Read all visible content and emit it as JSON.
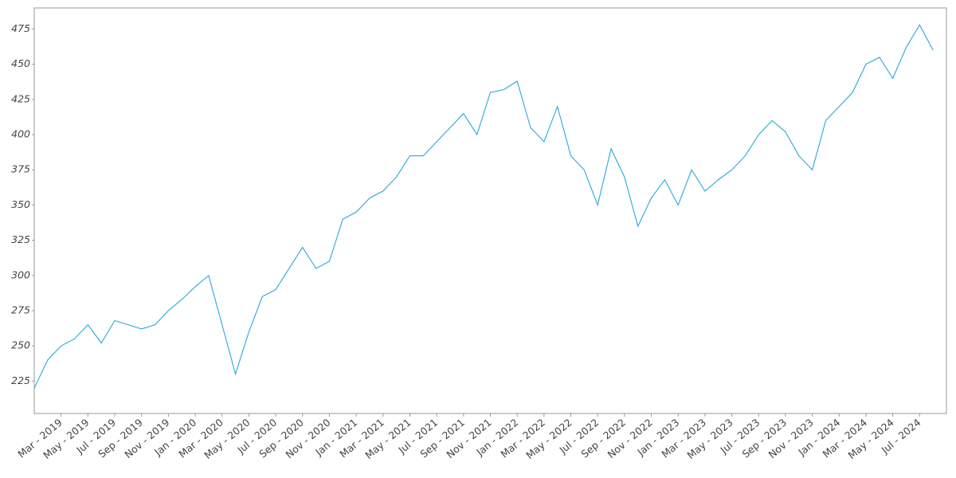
{
  "chart_data": {
    "type": "line",
    "x": [
      "2019-01",
      "2019-02",
      "2019-03",
      "2019-04",
      "2019-05",
      "2019-06",
      "2019-07",
      "2019-08",
      "2019-09",
      "2019-10",
      "2019-11",
      "2019-12",
      "2020-01",
      "2020-02",
      "2020-03",
      "2020-04",
      "2020-05",
      "2020-06",
      "2020-07",
      "2020-08",
      "2020-09",
      "2020-10",
      "2020-11",
      "2020-12",
      "2021-01",
      "2021-02",
      "2021-03",
      "2021-04",
      "2021-05",
      "2021-06",
      "2021-07",
      "2021-08",
      "2021-09",
      "2021-10",
      "2021-11",
      "2021-12",
      "2022-01",
      "2022-02",
      "2022-03",
      "2022-04",
      "2022-05",
      "2022-06",
      "2022-07",
      "2022-08",
      "2022-09",
      "2022-10",
      "2022-11",
      "2022-12",
      "2023-01",
      "2023-02",
      "2023-03",
      "2023-04",
      "2023-05",
      "2023-06",
      "2023-07",
      "2023-08",
      "2023-09",
      "2023-10",
      "2023-11",
      "2023-12",
      "2024-01",
      "2024-02",
      "2024-03",
      "2024-04",
      "2024-05",
      "2024-06",
      "2024-07",
      "2024-08"
    ],
    "series": [
      {
        "color": "#29a8d8",
        "values": [
          220,
          240,
          250,
          255,
          265,
          252,
          268,
          265,
          262,
          265,
          275,
          283,
          292,
          300,
          265,
          230,
          260,
          285,
          290,
          305,
          320,
          305,
          310,
          340,
          345,
          355,
          360,
          370,
          385,
          385,
          395,
          405,
          415,
          400,
          430,
          432,
          438,
          405,
          395,
          420,
          385,
          375,
          350,
          390,
          370,
          335,
          355,
          368,
          350,
          375,
          360,
          368,
          375,
          385,
          400,
          410,
          402,
          385,
          375,
          410,
          420,
          430,
          450,
          455,
          440,
          462,
          478,
          460
        ]
      }
    ],
    "xlim": [
      "2019-01",
      "2024-09"
    ],
    "ylim": [
      202,
      490
    ],
    "yticks": [
      225,
      250,
      275,
      300,
      325,
      350,
      375,
      400,
      425,
      450,
      475
    ],
    "xticks": [
      {
        "value": "2019-03",
        "label": "Mar - 2019"
      },
      {
        "value": "2019-05",
        "label": "May - 2019"
      },
      {
        "value": "2019-07",
        "label": "Jul - 2019"
      },
      {
        "value": "2019-09",
        "label": "Sep - 2019"
      },
      {
        "value": "2019-11",
        "label": "Nov - 2019"
      },
      {
        "value": "2020-01",
        "label": "Jan - 2020"
      },
      {
        "value": "2020-03",
        "label": "Mar - 2020"
      },
      {
        "value": "2020-05",
        "label": "May - 2020"
      },
      {
        "value": "2020-07",
        "label": "Jul - 2020"
      },
      {
        "value": "2020-09",
        "label": "Sep - 2020"
      },
      {
        "value": "2020-11",
        "label": "Nov - 2020"
      },
      {
        "value": "2021-01",
        "label": "Jan - 2021"
      },
      {
        "value": "2021-03",
        "label": "Mar - 2021"
      },
      {
        "value": "2021-05",
        "label": "May - 2021"
      },
      {
        "value": "2021-07",
        "label": "Jul - 2021"
      },
      {
        "value": "2021-09",
        "label": "Sep - 2021"
      },
      {
        "value": "2021-11",
        "label": "Nov - 2021"
      },
      {
        "value": "2022-01",
        "label": "Jan - 2022"
      },
      {
        "value": "2022-03",
        "label": "Mar - 2022"
      },
      {
        "value": "2022-05",
        "label": "May - 2022"
      },
      {
        "value": "2022-07",
        "label": "Jul - 2022"
      },
      {
        "value": "2022-09",
        "label": "Sep - 2022"
      },
      {
        "value": "2022-11",
        "label": "Nov - 2022"
      },
      {
        "value": "2023-01",
        "label": "Jan - 2023"
      },
      {
        "value": "2023-03",
        "label": "Mar - 2023"
      },
      {
        "value": "2023-05",
        "label": "May - 2023"
      },
      {
        "value": "2023-07",
        "label": "Jul - 2023"
      },
      {
        "value": "2023-09",
        "label": "Sep - 2023"
      },
      {
        "value": "2023-11",
        "label": "Nov - 2023"
      },
      {
        "value": "2024-01",
        "label": "Jan - 2024"
      },
      {
        "value": "2024-03",
        "label": "Mar - 2024"
      },
      {
        "value": "2024-05",
        "label": "May - 2024"
      },
      {
        "value": "2024-07",
        "label": "Jul - 2024"
      }
    ],
    "grid": false
  }
}
